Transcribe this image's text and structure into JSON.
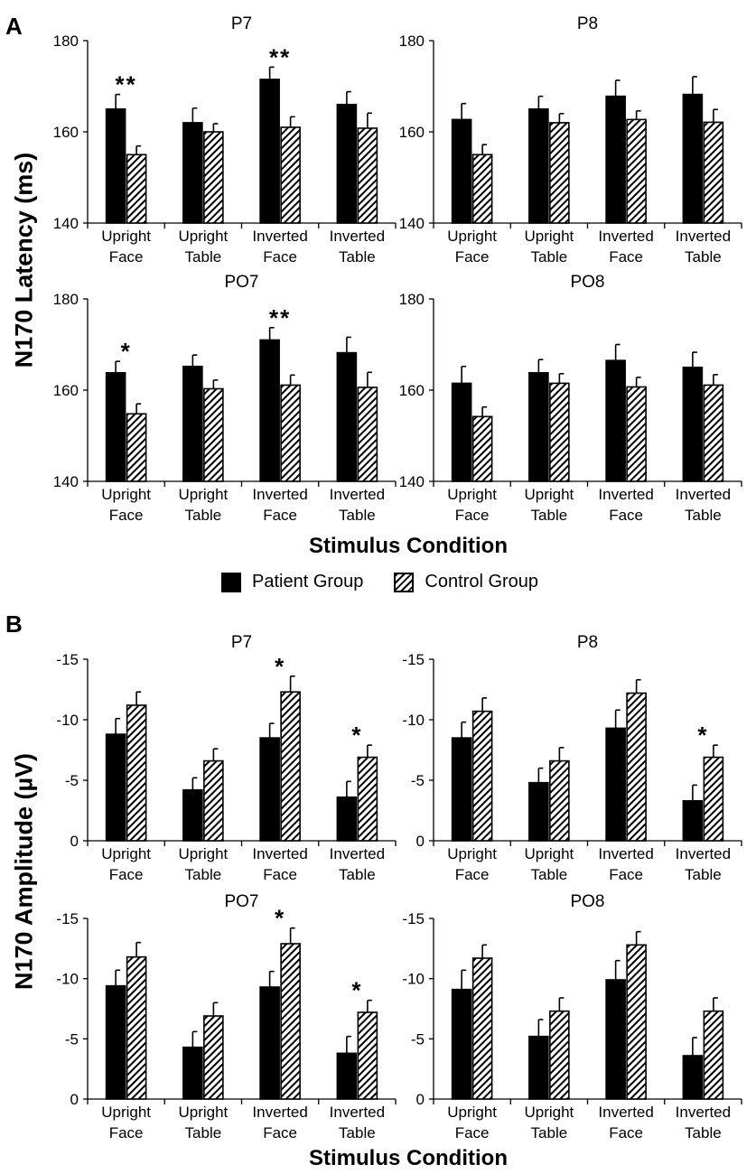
{
  "figure": {
    "panel_a_letter": "A",
    "panel_b_letter": "B",
    "panel_a_ylabel": "N170 Latency (ms)",
    "panel_b_ylabel": "N170 Amplitude (µV)",
    "panel_a_xlabel": "Stimulus Condition",
    "panel_b_xlabel": "Stimulus Condition",
    "legend": {
      "patient_label": "Patient Group",
      "control_label": "Control Group"
    }
  },
  "chart_data": [
    {
      "type": "bar",
      "title": "P7",
      "panel": "A",
      "ylabel": "N170 Latency (ms)",
      "ylim": [
        140,
        180
      ],
      "yticks": [
        140,
        160,
        180
      ],
      "inverted_axis": false,
      "categories": [
        [
          "Upright",
          "Face"
        ],
        [
          "Upright",
          "Table"
        ],
        [
          "Inverted",
          "Face"
        ],
        [
          "Inverted",
          "Table"
        ]
      ],
      "series": [
        {
          "name": "Patient Group",
          "values": [
            165,
            162,
            171.5,
            166
          ],
          "errors": [
            3.2,
            3.2,
            2.7,
            2.8
          ]
        },
        {
          "name": "Control Group",
          "values": [
            155,
            160,
            161,
            160.8
          ],
          "errors": [
            1.9,
            1.8,
            2.3,
            3.3
          ]
        }
      ],
      "annotations": [
        "**",
        "",
        "**",
        ""
      ]
    },
    {
      "type": "bar",
      "title": "P8",
      "panel": "A",
      "ylabel": "N170 Latency (ms)",
      "ylim": [
        140,
        180
      ],
      "yticks": [
        140,
        160,
        180
      ],
      "inverted_axis": false,
      "categories": [
        [
          "Upright",
          "Face"
        ],
        [
          "Upright",
          "Table"
        ],
        [
          "Inverted",
          "Face"
        ],
        [
          "Inverted",
          "Table"
        ]
      ],
      "series": [
        {
          "name": "Patient Group",
          "values": [
            162.7,
            165,
            167.8,
            168.2
          ],
          "errors": [
            3.5,
            2.8,
            3.5,
            3.9
          ]
        },
        {
          "name": "Control Group",
          "values": [
            155,
            162,
            162.7,
            162.1
          ],
          "errors": [
            2.2,
            2.0,
            1.9,
            2.8
          ]
        }
      ],
      "annotations": [
        "",
        "",
        "",
        ""
      ]
    },
    {
      "type": "bar",
      "title": "PO7",
      "panel": "A",
      "ylabel": "N170 Latency (ms)",
      "ylim": [
        140,
        180
      ],
      "yticks": [
        140,
        160,
        180
      ],
      "inverted_axis": false,
      "categories": [
        [
          "Upright",
          "Face"
        ],
        [
          "Upright",
          "Table"
        ],
        [
          "Inverted",
          "Face"
        ],
        [
          "Inverted",
          "Table"
        ]
      ],
      "series": [
        {
          "name": "Patient Group",
          "values": [
            163.8,
            165.2,
            171,
            168.2
          ],
          "errors": [
            2.5,
            2.5,
            2.7,
            3.4
          ]
        },
        {
          "name": "Control Group",
          "values": [
            154.8,
            160.3,
            161.1,
            160.6
          ],
          "errors": [
            2.2,
            1.9,
            2.2,
            3.3
          ]
        }
      ],
      "annotations": [
        "*",
        "",
        "**",
        ""
      ]
    },
    {
      "type": "bar",
      "title": "PO8",
      "panel": "A",
      "ylabel": "N170 Latency (ms)",
      "ylim": [
        140,
        180
      ],
      "yticks": [
        140,
        160,
        180
      ],
      "inverted_axis": false,
      "categories": [
        [
          "Upright",
          "Face"
        ],
        [
          "Upright",
          "Table"
        ],
        [
          "Inverted",
          "Face"
        ],
        [
          "Inverted",
          "Table"
        ]
      ],
      "series": [
        {
          "name": "Patient Group",
          "values": [
            161.5,
            163.8,
            166.5,
            165
          ],
          "errors": [
            3.7,
            2.9,
            3.5,
            3.3
          ]
        },
        {
          "name": "Control Group",
          "values": [
            154.2,
            161.5,
            160.7,
            161.1
          ],
          "errors": [
            2.1,
            2.1,
            2.1,
            2.3
          ]
        }
      ],
      "annotations": [
        "",
        "",
        "",
        ""
      ]
    },
    {
      "type": "bar",
      "title": "P7",
      "panel": "B",
      "ylabel": "N170 Amplitude (µV)",
      "ylim": [
        0,
        -15
      ],
      "yticks": [
        0,
        -5,
        -10,
        -15
      ],
      "inverted_axis": true,
      "categories": [
        [
          "Upright",
          "Face"
        ],
        [
          "Upright",
          "Table"
        ],
        [
          "Inverted",
          "Face"
        ],
        [
          "Inverted",
          "Table"
        ]
      ],
      "series": [
        {
          "name": "Patient Group",
          "values": [
            -8.8,
            -4.2,
            -8.5,
            -3.6
          ],
          "errors": [
            1.3,
            1.0,
            1.2,
            1.3
          ]
        },
        {
          "name": "Control Group",
          "values": [
            -11.2,
            -6.6,
            -12.3,
            -6.9
          ],
          "errors": [
            1.1,
            1.0,
            1.3,
            1.0
          ]
        }
      ],
      "annotations": [
        "",
        "",
        "*",
        "*"
      ]
    },
    {
      "type": "bar",
      "title": "P8",
      "panel": "B",
      "ylabel": "N170 Amplitude (µV)",
      "ylim": [
        0,
        -15
      ],
      "yticks": [
        0,
        -5,
        -10,
        -15
      ],
      "inverted_axis": true,
      "categories": [
        [
          "Upright",
          "Face"
        ],
        [
          "Upright",
          "Table"
        ],
        [
          "Inverted",
          "Face"
        ],
        [
          "Inverted",
          "Table"
        ]
      ],
      "series": [
        {
          "name": "Patient Group",
          "values": [
            -8.5,
            -4.8,
            -9.3,
            -3.3
          ],
          "errors": [
            1.3,
            1.2,
            1.5,
            1.3
          ]
        },
        {
          "name": "Control Group",
          "values": [
            -10.7,
            -6.6,
            -12.2,
            -6.9
          ],
          "errors": [
            1.1,
            1.1,
            1.1,
            1.0
          ]
        }
      ],
      "annotations": [
        "",
        "",
        "",
        "*"
      ]
    },
    {
      "type": "bar",
      "title": "PO7",
      "panel": "B",
      "ylabel": "N170 Amplitude (µV)",
      "ylim": [
        0,
        -15
      ],
      "yticks": [
        0,
        -5,
        -10,
        -15
      ],
      "inverted_axis": true,
      "categories": [
        [
          "Upright",
          "Face"
        ],
        [
          "Upright",
          "Table"
        ],
        [
          "Inverted",
          "Face"
        ],
        [
          "Inverted",
          "Table"
        ]
      ],
      "series": [
        {
          "name": "Patient Group",
          "values": [
            -9.4,
            -4.3,
            -9.3,
            -3.8
          ],
          "errors": [
            1.3,
            1.3,
            1.3,
            1.4
          ]
        },
        {
          "name": "Control Group",
          "values": [
            -11.8,
            -6.9,
            -12.9,
            -7.2
          ],
          "errors": [
            1.2,
            1.1,
            1.3,
            1.0
          ]
        }
      ],
      "annotations": [
        "",
        "",
        "*",
        "*"
      ]
    },
    {
      "type": "bar",
      "title": "PO8",
      "panel": "B",
      "ylabel": "N170 Amplitude (µV)",
      "ylim": [
        0,
        -15
      ],
      "yticks": [
        0,
        -5,
        -10,
        -15
      ],
      "inverted_axis": true,
      "categories": [
        [
          "Upright",
          "Face"
        ],
        [
          "Upright",
          "Table"
        ],
        [
          "Inverted",
          "Face"
        ],
        [
          "Inverted",
          "Table"
        ]
      ],
      "series": [
        {
          "name": "Patient Group",
          "values": [
            -9.1,
            -5.2,
            -9.9,
            -3.6
          ],
          "errors": [
            1.6,
            1.4,
            1.6,
            1.5
          ]
        },
        {
          "name": "Control Group",
          "values": [
            -11.7,
            -7.3,
            -12.8,
            -7.3
          ],
          "errors": [
            1.1,
            1.1,
            1.1,
            1.1
          ]
        }
      ],
      "annotations": [
        "",
        "",
        "",
        ""
      ]
    }
  ]
}
